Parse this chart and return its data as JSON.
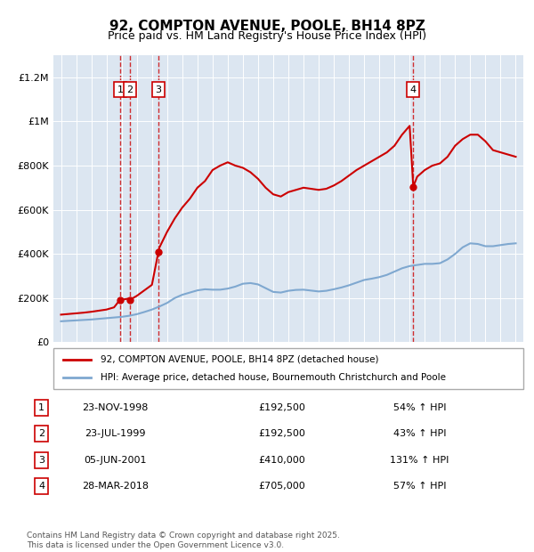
{
  "title": "92, COMPTON AVENUE, POOLE, BH14 8PZ",
  "subtitle": "Price paid vs. HM Land Registry's House Price Index (HPI)",
  "bg_color": "#dce6f1",
  "plot_bg_color": "#dce6f1",
  "red_line_color": "#cc0000",
  "blue_line_color": "#7fa8d0",
  "transactions": [
    {
      "num": 1,
      "date": "23-NOV-1998",
      "date_val": 1998.896,
      "price": 192500,
      "label": "23-NOV-1998",
      "pct": "54% ↑ HPI"
    },
    {
      "num": 2,
      "date": "23-JUL-1999",
      "date_val": 1999.557,
      "price": 192500,
      "label": "23-JUL-1999",
      "pct": "43% ↑ HPI"
    },
    {
      "num": 3,
      "date": "05-JUN-2001",
      "date_val": 2001.428,
      "price": 410000,
      "label": "05-JUN-2001",
      "pct": "131% ↑ HPI"
    },
    {
      "num": 4,
      "date": "28-MAR-2018",
      "date_val": 2018.24,
      "price": 705000,
      "label": "28-MAR-2018",
      "pct": "57% ↑ HPI"
    }
  ],
  "hpi_x": [
    1995,
    1995.5,
    1996,
    1996.5,
    1997,
    1997.5,
    1998,
    1998.5,
    1999,
    1999.5,
    2000,
    2000.5,
    2001,
    2001.5,
    2002,
    2002.5,
    2003,
    2003.5,
    2004,
    2004.5,
    2005,
    2005.5,
    2006,
    2006.5,
    2007,
    2007.5,
    2008,
    2008.5,
    2009,
    2009.5,
    2010,
    2010.5,
    2011,
    2011.5,
    2012,
    2012.5,
    2013,
    2013.5,
    2014,
    2014.5,
    2015,
    2015.5,
    2016,
    2016.5,
    2017,
    2017.5,
    2018,
    2018.5,
    2019,
    2019.5,
    2020,
    2020.5,
    2021,
    2021.5,
    2022,
    2022.5,
    2023,
    2023.5,
    2024,
    2024.5,
    2025
  ],
  "hpi_y": [
    95000,
    97000,
    99000,
    101000,
    103000,
    106000,
    109000,
    112000,
    115000,
    120000,
    127000,
    137000,
    148000,
    162000,
    178000,
    200000,
    215000,
    225000,
    235000,
    240000,
    238000,
    238000,
    243000,
    252000,
    265000,
    268000,
    262000,
    245000,
    228000,
    225000,
    233000,
    237000,
    238000,
    234000,
    230000,
    233000,
    240000,
    248000,
    258000,
    270000,
    282000,
    288000,
    295000,
    305000,
    320000,
    335000,
    345000,
    350000,
    355000,
    355000,
    358000,
    375000,
    400000,
    430000,
    448000,
    445000,
    435000,
    435000,
    440000,
    445000,
    448000
  ],
  "prop_x": [
    1995,
    1995.5,
    1996,
    1996.5,
    1997,
    1997.5,
    1998,
    1998.5,
    1998.896,
    1999,
    1999.5,
    1999.557,
    2000,
    2000.5,
    2001,
    2001.428,
    2001.5,
    2002,
    2002.5,
    2003,
    2003.5,
    2004,
    2004.5,
    2005,
    2005.5,
    2006,
    2006.5,
    2007,
    2007.5,
    2008,
    2008.5,
    2009,
    2009.5,
    2010,
    2010.5,
    2011,
    2011.5,
    2012,
    2012.5,
    2013,
    2013.5,
    2014,
    2014.5,
    2015,
    2015.5,
    2016,
    2016.5,
    2017,
    2017.5,
    2018,
    2018.24,
    2018.5,
    2019,
    2019.5,
    2020,
    2020.5,
    2021,
    2021.5,
    2022,
    2022.5,
    2023,
    2023.5,
    2024,
    2024.5,
    2025
  ],
  "prop_y": [
    125000,
    128000,
    131000,
    134000,
    138000,
    143000,
    148000,
    158000,
    192500,
    192500,
    198000,
    192500,
    210000,
    235000,
    260000,
    410000,
    430000,
    500000,
    560000,
    610000,
    650000,
    700000,
    730000,
    780000,
    800000,
    815000,
    800000,
    790000,
    770000,
    740000,
    700000,
    670000,
    660000,
    680000,
    690000,
    700000,
    695000,
    690000,
    695000,
    710000,
    730000,
    755000,
    780000,
    800000,
    820000,
    840000,
    860000,
    890000,
    940000,
    980000,
    705000,
    750000,
    780000,
    800000,
    810000,
    840000,
    890000,
    920000,
    940000,
    940000,
    910000,
    870000,
    860000,
    850000,
    840000
  ],
  "ylim": [
    0,
    1300000
  ],
  "xlim": [
    1994.5,
    2025.5
  ],
  "yticks": [
    0,
    200000,
    400000,
    600000,
    800000,
    1000000,
    1200000
  ],
  "ytick_labels": [
    "£0",
    "£200K",
    "£400K",
    "£600K",
    "£800K",
    "£1M",
    "£1.2M"
  ],
  "xticks": [
    1995,
    1996,
    1997,
    1998,
    1999,
    2000,
    2001,
    2002,
    2003,
    2004,
    2005,
    2006,
    2007,
    2008,
    2009,
    2010,
    2011,
    2012,
    2013,
    2014,
    2015,
    2016,
    2017,
    2018,
    2019,
    2020,
    2021,
    2022,
    2023,
    2024,
    2025
  ],
  "legend_prop_label": "92, COMPTON AVENUE, POOLE, BH14 8PZ (detached house)",
  "legend_hpi_label": "HPI: Average price, detached house, Bournemouth Christchurch and Poole",
  "footer": "Contains HM Land Registry data © Crown copyright and database right 2025.\nThis data is licensed under the Open Government Licence v3.0."
}
